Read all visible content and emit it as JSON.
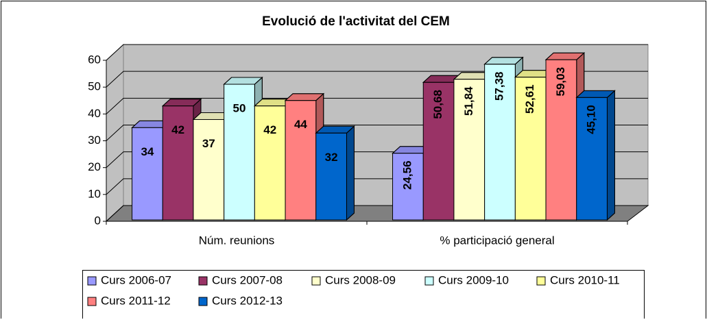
{
  "chart_data": {
    "type": "bar3d",
    "title": "Evolució de l'activitat del CEM",
    "categories": [
      "Núm. reunions",
      "% participació general"
    ],
    "series": [
      {
        "name": "Curs 2006-07",
        "color": "#9999ff",
        "values": [
          34,
          24.56
        ],
        "value_labels": [
          "34",
          "24,56"
        ]
      },
      {
        "name": "Curs 2007-08",
        "color": "#993366",
        "values": [
          42,
          50.68
        ],
        "value_labels": [
          "42",
          "50,68"
        ]
      },
      {
        "name": "Curs 2008-09",
        "color": "#ffffcc",
        "values": [
          37,
          51.84
        ],
        "value_labels": [
          "37",
          "51,84"
        ]
      },
      {
        "name": "Curs 2009-10",
        "color": "#ccffff",
        "values": [
          50,
          57.38
        ],
        "value_labels": [
          "50",
          "57,38"
        ]
      },
      {
        "name": "Curs 2010-11",
        "color": "#ffff99",
        "values": [
          42,
          52.61
        ],
        "value_labels": [
          "42",
          "52,61"
        ]
      },
      {
        "name": "Curs 2011-12",
        "color": "#ff8080",
        "values": [
          44,
          59.03
        ],
        "value_labels": [
          "44",
          "59,03"
        ]
      },
      {
        "name": "Curs 2012-13",
        "color": "#0066cc",
        "values": [
          32,
          45.1
        ],
        "value_labels": [
          "32",
          "45,10"
        ]
      }
    ],
    "ylim": [
      0,
      60
    ],
    "yticks": [
      0,
      10,
      20,
      30,
      40,
      50,
      60
    ],
    "grid": true,
    "legend": "bottom"
  }
}
